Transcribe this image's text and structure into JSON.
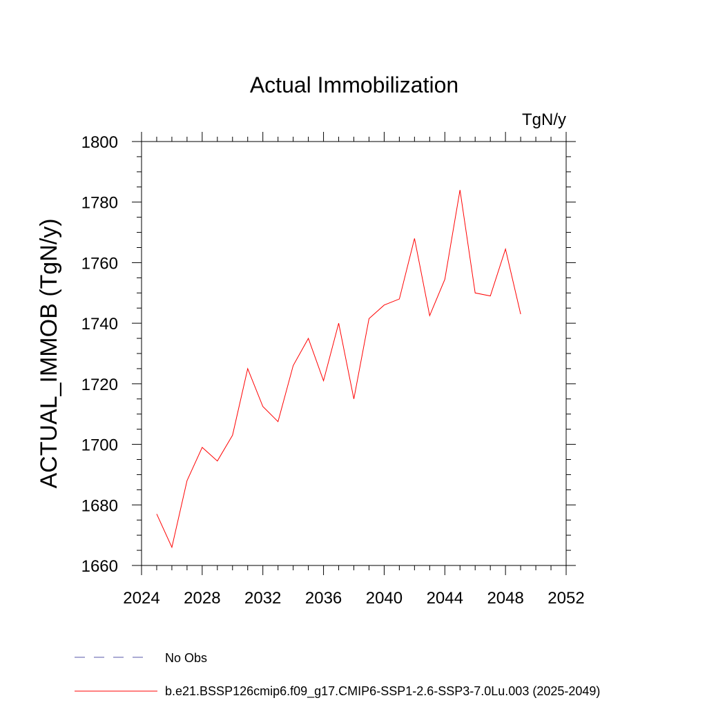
{
  "chart_data": {
    "type": "line",
    "title": "Actual Immobilization",
    "units": "TgN/y",
    "ylabel": "ACTUAL_IMMOB  (TgN/y)",
    "xlabel": "",
    "xlim": [
      2024,
      2052
    ],
    "ylim": [
      1660,
      1800
    ],
    "x_ticks": [
      2024,
      2028,
      2032,
      2036,
      2040,
      2044,
      2048,
      2052
    ],
    "y_ticks": [
      1660,
      1680,
      1700,
      1720,
      1740,
      1760,
      1780,
      1800
    ],
    "x_tick_labels": [
      "2024",
      "2028",
      "2032",
      "2036",
      "2040",
      "2044",
      "2048",
      "2052"
    ],
    "y_tick_labels": [
      "1660",
      "1680",
      "1700",
      "1720",
      "1740",
      "1760",
      "1780",
      "1800"
    ],
    "grid": false,
    "legend_position": "bottom",
    "x": [
      2025,
      2026,
      2027,
      2028,
      2029,
      2030,
      2031,
      2032,
      2033,
      2034,
      2035,
      2036,
      2037,
      2038,
      2039,
      2040,
      2041,
      2042,
      2043,
      2044,
      2045,
      2046,
      2047,
      2048,
      2049
    ],
    "series": [
      {
        "name": "b.e21.BSSP126cmip6.f09_g17.CMIP6-SSP1-2.6-SSP3-7.0Lu.003 (2025-2049)",
        "color": "#ff0000",
        "dash": "solid",
        "values": [
          1677,
          1666,
          1688,
          1699,
          1694.5,
          1703,
          1725,
          1712.5,
          1707.5,
          1726,
          1735,
          1721,
          1740,
          1715,
          1741.5,
          1746,
          1748,
          1768,
          1742.5,
          1754.5,
          1784,
          1750,
          1749,
          1764.5,
          1743
        ]
      }
    ],
    "legend": [
      {
        "label": "No Obs",
        "color": "#5555aa",
        "dash": "dashed"
      },
      {
        "label": "b.e21.BSSP126cmip6.f09_g17.CMIP6-SSP1-2.6-SSP3-7.0Lu.003 (2025-2049)",
        "color": "#ff0000",
        "dash": "solid"
      }
    ]
  }
}
